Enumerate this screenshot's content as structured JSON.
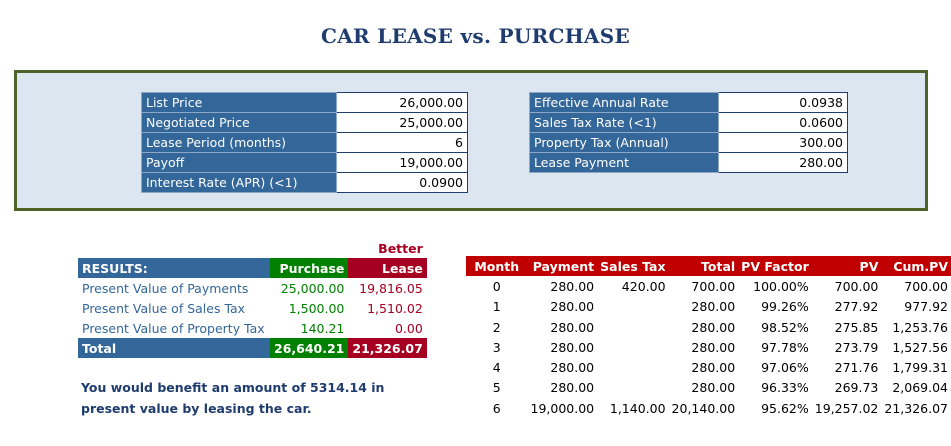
{
  "title": "CAR LEASE vs. PURCHASE",
  "inputs_left": [
    {
      "label": "List Price",
      "value": "26,000.00"
    },
    {
      "label": "Negotiated Price",
      "value": "25,000.00"
    },
    {
      "label": "Lease Period (months)",
      "value": "6"
    },
    {
      "label": "Payoff",
      "value": "19,000.00"
    },
    {
      "label": "Interest Rate (APR) (<1)",
      "value": "0.0900"
    }
  ],
  "inputs_right": [
    {
      "label": "Effective Annual Rate",
      "value": "0.0938"
    },
    {
      "label": "Sales Tax Rate (<1)",
      "value": "0.0600"
    },
    {
      "label": "Property Tax (Annual)",
      "value": "300.00"
    },
    {
      "label": "Lease Payment",
      "value": "280.00"
    }
  ],
  "results": {
    "better_label": "Better",
    "header": {
      "label": "RESULTS:",
      "purchase": "Purchase",
      "lease": "Lease"
    },
    "rows": [
      {
        "label": "Present Value of Payments",
        "purchase": "25,000.00",
        "lease": "19,816.05"
      },
      {
        "label": "Present Value of Sales Tax",
        "purchase": "1,500.00",
        "lease": "1,510.02"
      },
      {
        "label": "Present Value of Property Tax",
        "purchase": "140.21",
        "lease": "0.00"
      }
    ],
    "total": {
      "label": "Total",
      "purchase": "26,640.21",
      "lease": "21,326.07"
    }
  },
  "note": "You would benefit an amount of 5314.14 in present value by leasing the car.",
  "schedule": {
    "headers": [
      "Month",
      "Payment",
      "Sales Tax",
      "Total",
      "PV Factor",
      "PV",
      "Cum.PV"
    ],
    "rows": [
      [
        "0",
        "280.00",
        "420.00",
        "700.00",
        "100.00%",
        "700.00",
        "700.00"
      ],
      [
        "1",
        "280.00",
        "",
        "280.00",
        "99.26%",
        "277.92",
        "977.92"
      ],
      [
        "2",
        "280.00",
        "",
        "280.00",
        "98.52%",
        "275.85",
        "1,253.76"
      ],
      [
        "3",
        "280.00",
        "",
        "280.00",
        "97.78%",
        "273.79",
        "1,527.56"
      ],
      [
        "4",
        "280.00",
        "",
        "280.00",
        "97.06%",
        "271.76",
        "1,799.31"
      ],
      [
        "5",
        "280.00",
        "",
        "280.00",
        "96.33%",
        "269.73",
        "2,069.04"
      ],
      [
        "6",
        "19,000.00",
        "1,140.00",
        "20,140.00",
        "95.62%",
        "19,257.02",
        "21,326.07"
      ]
    ]
  }
}
